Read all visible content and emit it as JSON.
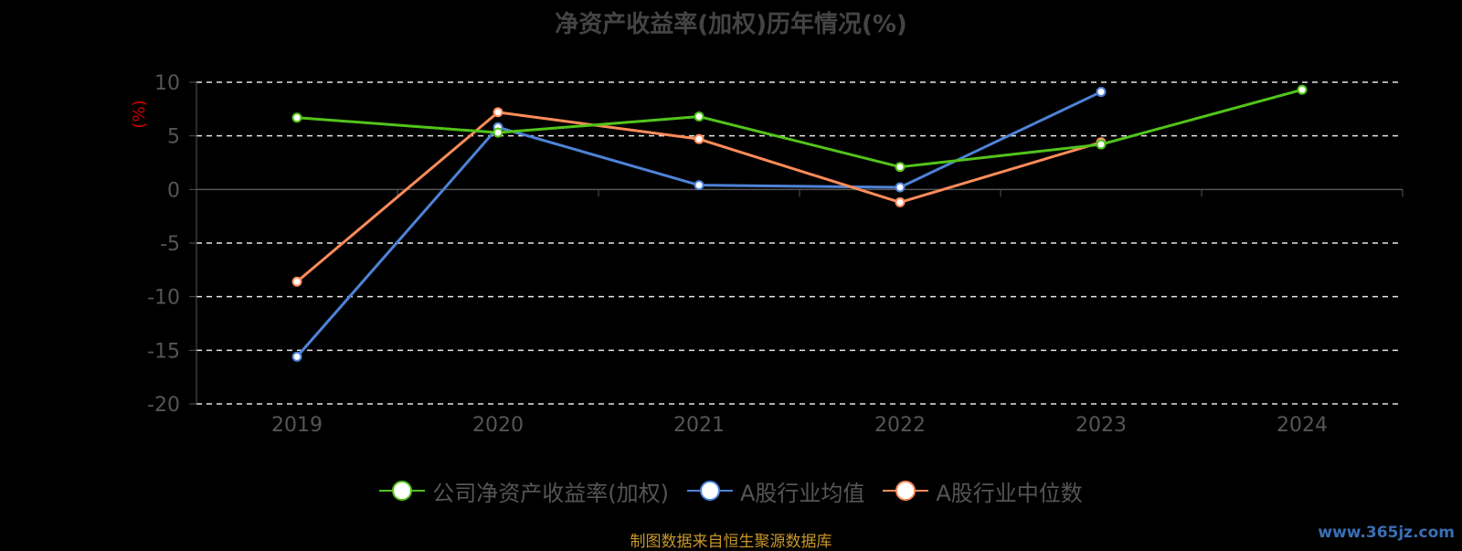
{
  "chart_data": {
    "type": "line",
    "title": "净资产收益率(加权)历年情况(%)",
    "ylabel": "(%)",
    "xlabel": "",
    "categories": [
      "2019",
      "2020",
      "2021",
      "2022",
      "2023",
      "2024"
    ],
    "ylim": [
      -20,
      10
    ],
    "yticks": [
      10,
      5,
      0,
      -5,
      -10,
      -15,
      -20
    ],
    "grid": true,
    "legend_position": "bottom",
    "series": [
      {
        "name": "公司净资产收益率(加权)",
        "color": "#52c41a",
        "values": [
          6.7,
          5.3,
          6.8,
          2.1,
          4.2,
          9.3
        ]
      },
      {
        "name": "A股行业均值",
        "color": "#4e83d8",
        "values": [
          -15.6,
          5.8,
          0.4,
          0.2,
          9.1,
          null
        ]
      },
      {
        "name": "A股行业中位数",
        "color": "#ff8c5a",
        "values": [
          -8.6,
          7.2,
          4.7,
          -1.2,
          4.4,
          null
        ]
      }
    ]
  },
  "source_note": "制图数据来自恒生聚源数据库",
  "watermark": "www.365jz.com"
}
